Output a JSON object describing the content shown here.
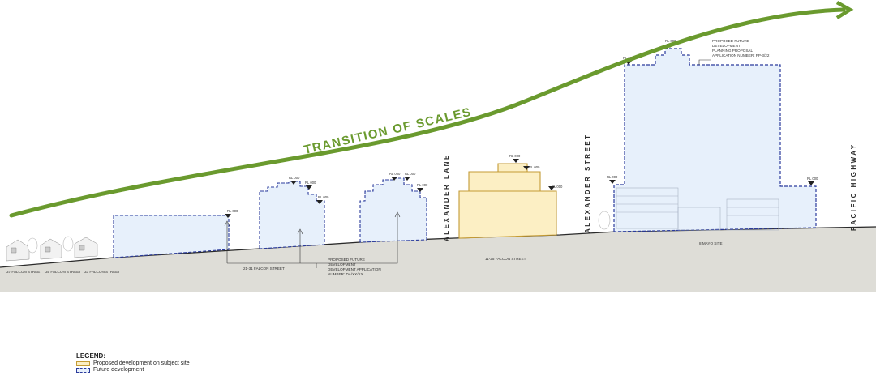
{
  "title_arrow": "TRANSITION OF SCALES",
  "roads": {
    "alexander_lane": "ALEXANDER LANE",
    "alexander_street": "ALEXANDER STREET",
    "pacific_highway": "PACIFIC HIGHWAY"
  },
  "site_labels": {
    "house_1": "37 FALCON STREET",
    "house_2": "35 FALCON STREET",
    "house_3": "33 FALCON STREET",
    "site_21": "21-31 FALCON STREET",
    "site_subject": "11-25 FALCON STREET",
    "site_mayo": "8 MAYO SITE"
  },
  "notes": {
    "future_dev": "PROPOSED FUTURE DEVELOPMENT DEVELOPMENT APPLICATION NUMBER: DA/XX/XX",
    "future_dev_lines": [
      "PROPOSED FUTURE",
      "DEVELOPMENT",
      "DEVELOPMENT APPLICATION",
      "NUMBER: DA/XX/XX"
    ],
    "planning_proposal_lines": [
      "PROPOSED FUTURE",
      "DEVELOPMENT",
      "PLANNING PROPOSAL",
      "APPLICATION NUMBER: PP-3/22"
    ]
  },
  "levels": {
    "a": "RL 000",
    "b": "RL 000",
    "c": "RL 000",
    "d": "RL 000",
    "e": "RL 000",
    "f": "RL 000",
    "g": "RL 000",
    "h": "RL 000",
    "i": "RL 000",
    "j": "RL 000",
    "k": "RL 000",
    "l": "RL 000",
    "m": "RL 000",
    "n": "RL 000"
  },
  "legend": {
    "title": "LEGEND:",
    "items": [
      {
        "label": "Proposed development on subject site",
        "kind": "proposed"
      },
      {
        "label": "Future development",
        "kind": "future"
      }
    ]
  },
  "colors": {
    "arrow_green": "#6a9a2e",
    "future_fill": "#e7f0fb",
    "future_stroke": "#2b3b9c",
    "proposed_fill": "#fcefc4",
    "proposed_stroke": "#c49b35",
    "ground": "#deddd7"
  }
}
